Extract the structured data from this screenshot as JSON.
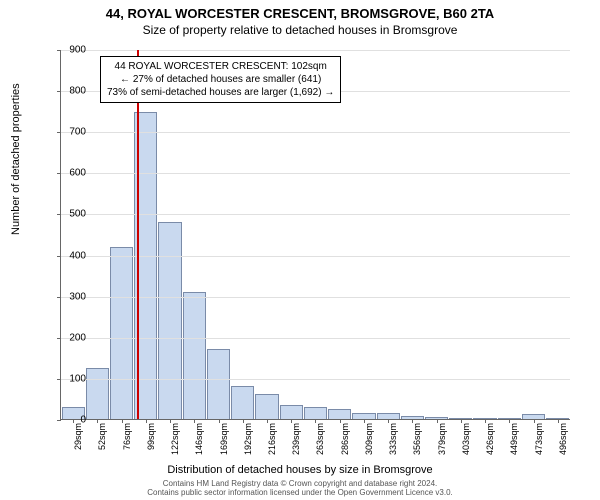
{
  "title": {
    "main": "44, ROYAL WORCESTER CRESCENT, BROMSGROVE, B60 2TA",
    "sub": "Size of property relative to detached houses in Bromsgrove"
  },
  "chart": {
    "type": "histogram",
    "ylabel": "Number of detached properties",
    "xlabel": "Distribution of detached houses by size in Bromsgrove",
    "ylim": [
      0,
      900
    ],
    "ytick_step": 100,
    "bar_fill": "#c9d9ef",
    "bar_stroke": "#7a8ba8",
    "grid_color": "#e0e0e0",
    "axis_color": "#666666",
    "categories": [
      "29sqm",
      "52sqm",
      "76sqm",
      "99sqm",
      "122sqm",
      "146sqm",
      "169sqm",
      "192sqm",
      "216sqm",
      "239sqm",
      "263sqm",
      "286sqm",
      "309sqm",
      "333sqm",
      "356sqm",
      "379sqm",
      "403sqm",
      "426sqm",
      "449sqm",
      "473sqm",
      "496sqm"
    ],
    "values": [
      30,
      125,
      420,
      750,
      480,
      310,
      170,
      80,
      60,
      35,
      30,
      25,
      15,
      15,
      8,
      5,
      3,
      2,
      3,
      12,
      2
    ],
    "marker": {
      "bin_index": 3,
      "fraction_in_bin": 0.13,
      "color": "#cc0000"
    }
  },
  "annotation": {
    "line1": "44 ROYAL WORCESTER CRESCENT: 102sqm",
    "line2": "← 27% of detached houses are smaller (641)",
    "line3": "73% of semi-detached houses are larger (1,692) →"
  },
  "footer": {
    "line1": "Contains HM Land Registry data © Crown copyright and database right 2024.",
    "line2": "Contains public sector information licensed under the Open Government Licence v3.0."
  }
}
